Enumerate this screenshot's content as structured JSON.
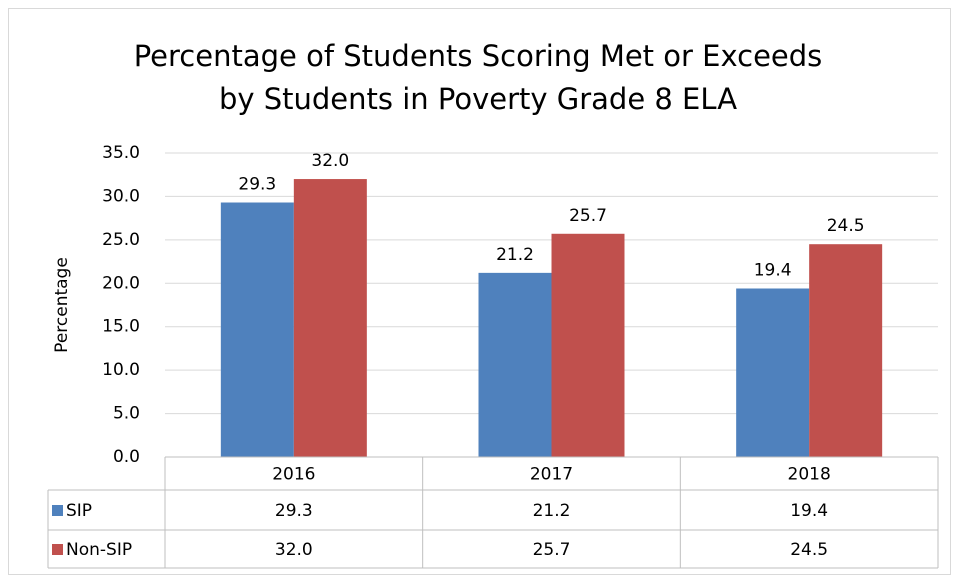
{
  "chart_data": {
    "type": "bar",
    "title": [
      "Percentage of Students Scoring Met or Exceeds",
      "by Students in Poverty Grade 8 ELA"
    ],
    "y_label": "Percentage",
    "categories": [
      "2016",
      "2017",
      "2018"
    ],
    "series": [
      {
        "name": "SIP",
        "color": "#4f81bd",
        "values": [
          29.3,
          21.2,
          19.4
        ],
        "value_labels": [
          "29.3",
          "21.2",
          "19.4"
        ]
      },
      {
        "name": "Non-SIP",
        "color": "#c0504d",
        "values": [
          32,
          25.7,
          24.5
        ],
        "value_labels": [
          "32.0",
          "25.7",
          "24.5"
        ]
      }
    ],
    "ylim": [
      0,
      35
    ],
    "yticks": [
      {
        "value": 0,
        "label": "0.0"
      },
      {
        "value": 5,
        "label": "5.0"
      },
      {
        "value": 10,
        "label": "10.0"
      },
      {
        "value": 15,
        "label": "15.0"
      },
      {
        "value": 20,
        "label": "20.0"
      },
      {
        "value": 25,
        "label": "25.0"
      },
      {
        "value": 30,
        "label": "30.0"
      },
      {
        "value": 35,
        "label": "35.0"
      }
    ],
    "grid": true,
    "data_table": true
  }
}
